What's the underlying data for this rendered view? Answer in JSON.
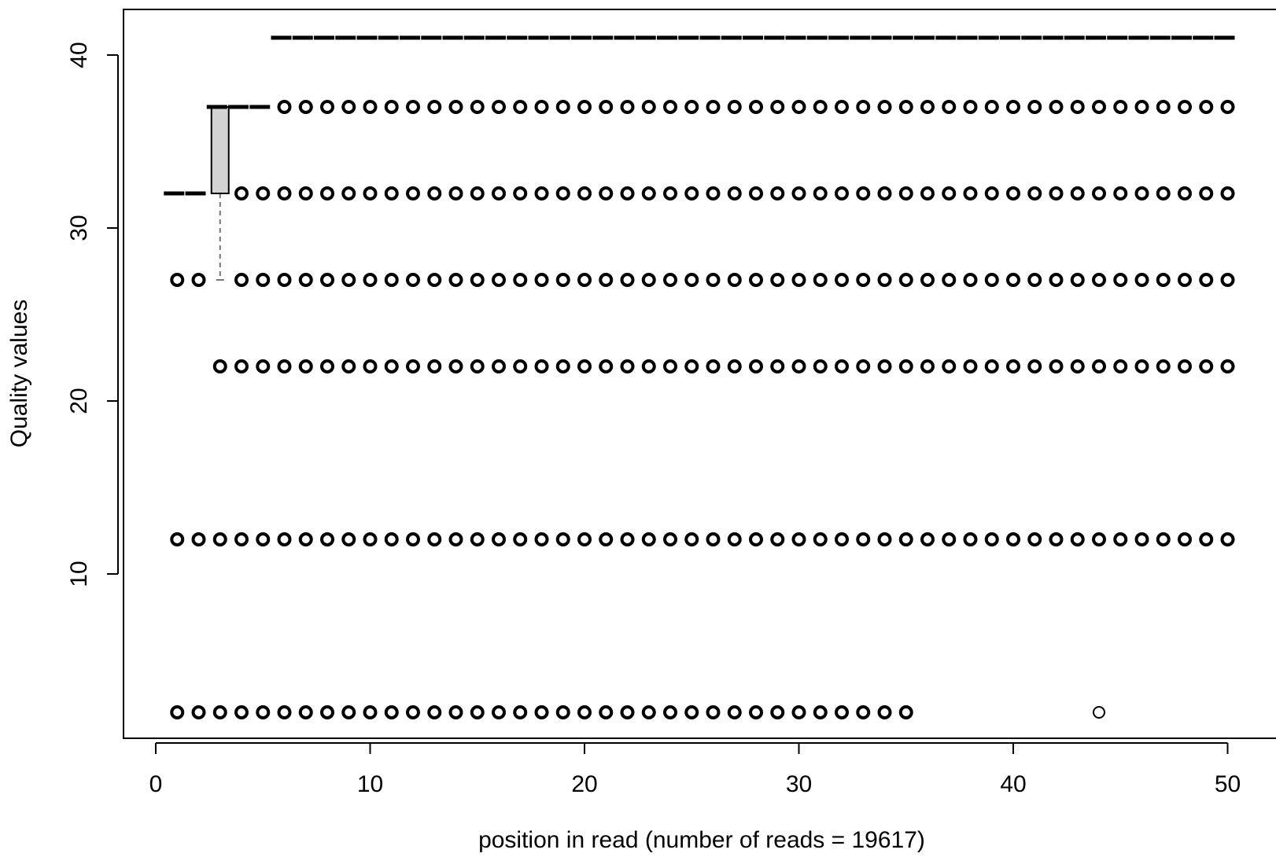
{
  "chart_data": {
    "type": "boxplot",
    "title": "",
    "xlabel": "position in read (number of reads = 19617)",
    "ylabel": "Quality values",
    "xlim": [
      0,
      50
    ],
    "ylim": [
      1,
      42
    ],
    "x_ticks": [
      0,
      10,
      20,
      30,
      40,
      50
    ],
    "y_ticks": [
      10,
      20,
      30,
      40
    ],
    "grid": false,
    "boxes": [
      {
        "position": 1,
        "q1": 32,
        "median": 32,
        "q3": 32,
        "whisker_low": 32,
        "whisker_high": 32,
        "outliers": [
          27,
          12,
          2
        ]
      },
      {
        "position": 2,
        "q1": 32,
        "median": 32,
        "q3": 32,
        "whisker_low": 32,
        "whisker_high": 32,
        "outliers": [
          27,
          12,
          2
        ]
      },
      {
        "position": 3,
        "q1": 32,
        "median": 37,
        "q3": 37,
        "whisker_low": 27,
        "whisker_high": 37,
        "outliers": [
          22,
          12,
          2
        ]
      },
      {
        "position": 4,
        "q1": 37,
        "median": 37,
        "q3": 37,
        "whisker_low": 37,
        "whisker_high": 37,
        "outliers": [
          32,
          27,
          22,
          12,
          2
        ]
      },
      {
        "position": 5,
        "q1": 37,
        "median": 37,
        "q3": 37,
        "whisker_low": 37,
        "whisker_high": 37,
        "outliers": [
          32,
          27,
          22,
          12,
          2
        ]
      },
      {
        "position_range": [
          6,
          35
        ],
        "q1": 41,
        "median": 41,
        "q3": 41,
        "whisker_low": 41,
        "whisker_high": 41,
        "outliers": [
          37,
          32,
          27,
          22,
          12,
          2
        ]
      },
      {
        "position_range": [
          36,
          50
        ],
        "q1": 41,
        "median": 41,
        "q3": 41,
        "whisker_low": 41,
        "whisker_high": 41,
        "outliers": [
          37,
          32,
          27,
          22,
          12
        ]
      },
      {
        "position": 44,
        "extra_outliers": [
          2
        ]
      }
    ]
  }
}
